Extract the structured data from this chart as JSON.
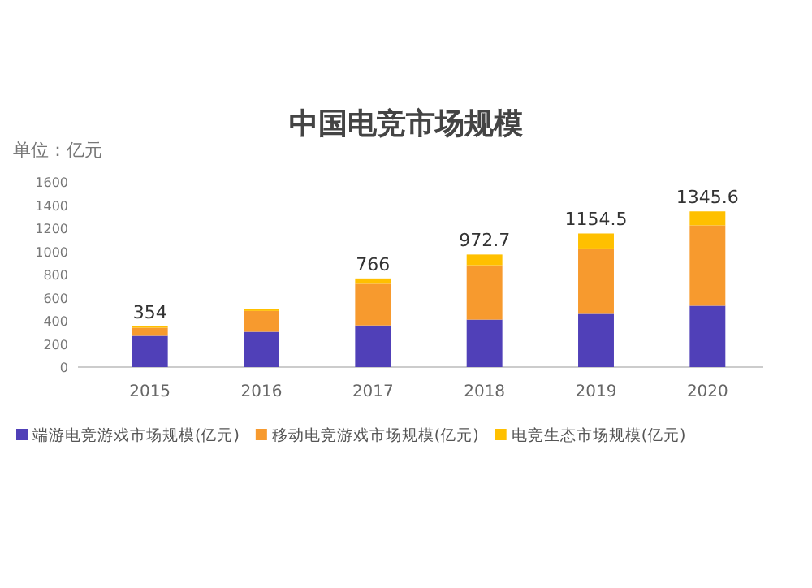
{
  "chart_data": {
    "type": "bar",
    "title": "中国电竞市场规模",
    "ylabel": "单位：亿元",
    "stacked": true,
    "categories": [
      "2015",
      "2016",
      "2017",
      "2018",
      "2019",
      "2020"
    ],
    "series": [
      {
        "name": "端游电竞游戏市场规模(亿元)",
        "color": "#5040b8",
        "values": [
          270,
          305,
          360,
          410,
          460,
          530
        ]
      },
      {
        "name": "移动电竞游戏市场规模(亿元)",
        "color": "#f79a2e",
        "values": [
          70,
          180,
          360,
          470,
          565,
          695
        ]
      },
      {
        "name": "电竞生态市场规模(亿元)",
        "color": "#ffc000",
        "values": [
          14,
          20,
          46,
          92.7,
          129.5,
          120.6
        ]
      }
    ],
    "totals": [
      "354",
      null,
      "766",
      "972.7",
      "1154.5",
      "1345.6"
    ],
    "ylim": [
      0,
      1600
    ],
    "yticks": [
      0,
      200,
      400,
      600,
      800,
      1000,
      1200,
      1400,
      1600
    ],
    "legend": "bottom"
  }
}
